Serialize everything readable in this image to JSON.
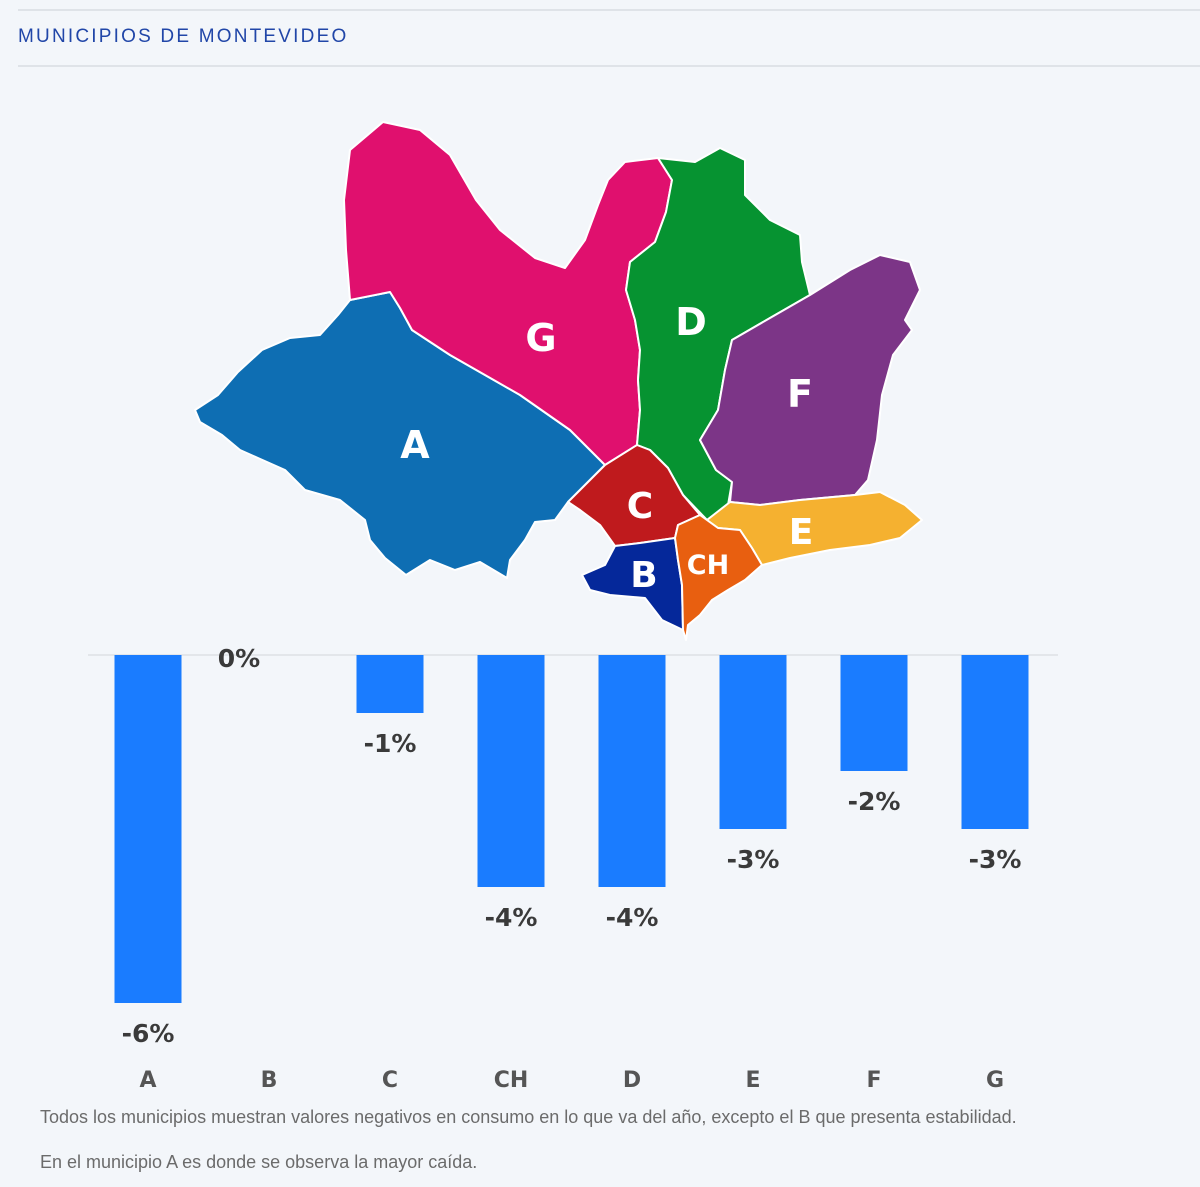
{
  "header": {
    "title": "MUNICIPIOS DE MONTEVIDEO"
  },
  "map": {
    "regions": [
      {
        "id": "A",
        "label": "A",
        "color": "#0e6eb3"
      },
      {
        "id": "G",
        "label": "G",
        "color": "#e0106e"
      },
      {
        "id": "D",
        "label": "D",
        "color": "#069331"
      },
      {
        "id": "F",
        "label": "F",
        "color": "#7c3587"
      },
      {
        "id": "C",
        "label": "C",
        "color": "#bf1a1d"
      },
      {
        "id": "E",
        "label": "E",
        "color": "#f5b130"
      },
      {
        "id": "B",
        "label": "B",
        "color": "#05289a"
      },
      {
        "id": "CH",
        "label": "CH",
        "color": "#e85f10"
      }
    ]
  },
  "chart_data": {
    "type": "bar",
    "categories": [
      "A",
      "B",
      "C",
      "CH",
      "D",
      "E",
      "F",
      "G"
    ],
    "values": [
      -6,
      0,
      -1,
      -4,
      -4,
      -3,
      -2,
      -3
    ],
    "value_labels": [
      "-6%",
      "0%",
      "-1%",
      "-4%",
      "-4%",
      "-3%",
      "-2%",
      "-3%"
    ],
    "ylim": [
      -6,
      0
    ],
    "bar_color": "#1a7cff",
    "grid": false,
    "title": "",
    "xlabel": "",
    "ylabel": ""
  },
  "notes": {
    "line1": "Todos los municipios muestran valores negativos en consumo en lo que va del año, excepto el B que presenta estabilidad.",
    "line2": "En el municipio A es donde se observa la mayor caída."
  }
}
